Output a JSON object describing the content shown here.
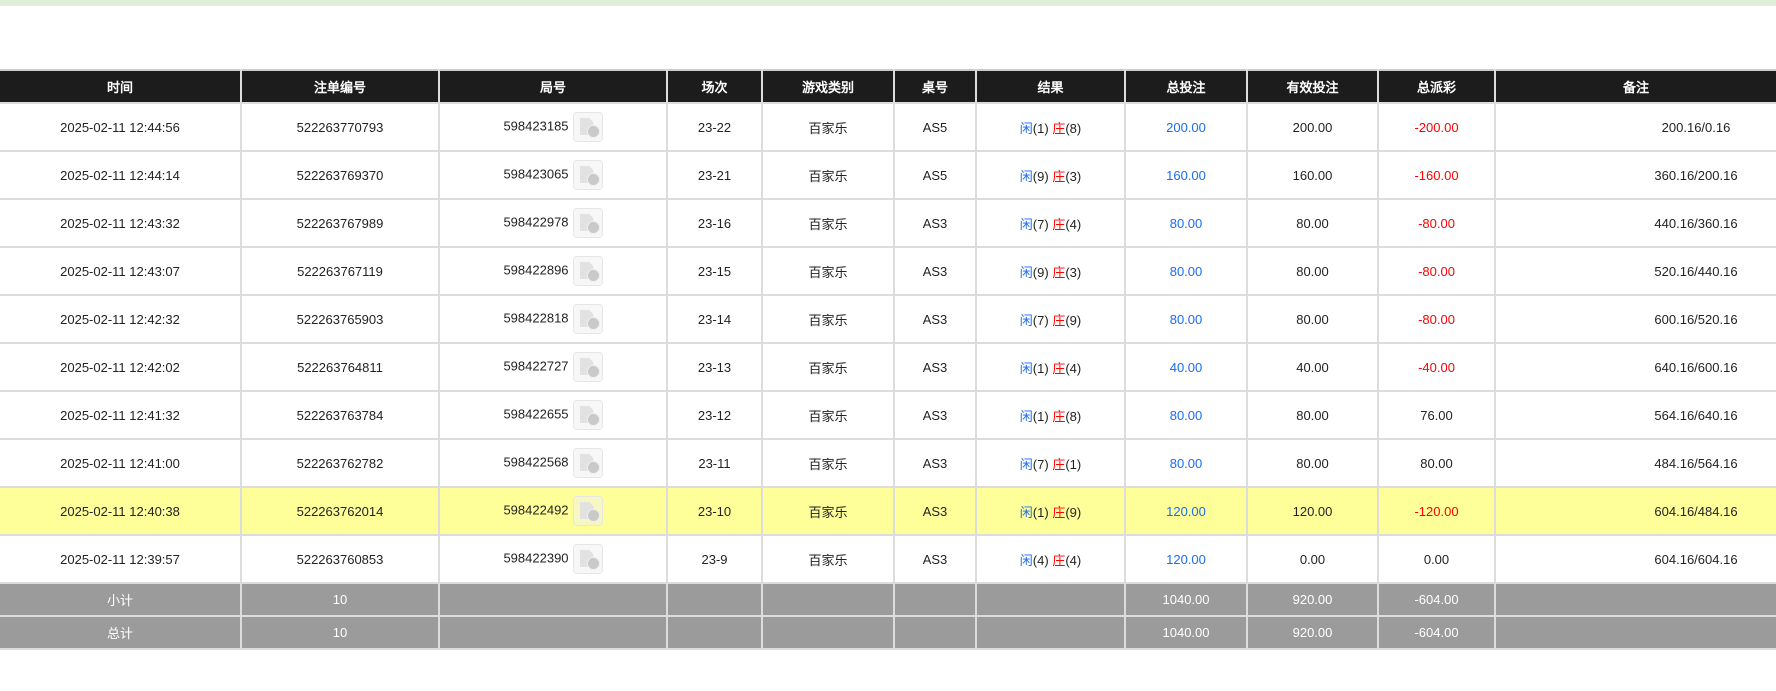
{
  "headers": [
    "时间",
    "注单编号",
    "局号",
    "场次",
    "游戏类别",
    "桌号",
    "结果",
    "总投注",
    "有效投注",
    "总派彩",
    "备注"
  ],
  "rows": [
    {
      "time": "2025-02-11 12:44:56",
      "bet_id": "522263770793",
      "round": "598423185",
      "session": "23-22",
      "game": "百家乐",
      "table": "AS5",
      "player_label": "闲",
      "player": "(1)",
      "banker_label": "庄",
      "banker": "(8)",
      "total_bet": "200.00",
      "valid_bet": "200.00",
      "payout": "-200.00",
      "payout_negative": true,
      "remark": "200.16/0.16"
    },
    {
      "time": "2025-02-11 12:44:14",
      "bet_id": "522263769370",
      "round": "598423065",
      "session": "23-21",
      "game": "百家乐",
      "table": "AS5",
      "player_label": "闲",
      "player": "(9)",
      "banker_label": "庄",
      "banker": "(3)",
      "total_bet": "160.00",
      "valid_bet": "160.00",
      "payout": "-160.00",
      "payout_negative": true,
      "remark": "360.16/200.16"
    },
    {
      "time": "2025-02-11 12:43:32",
      "bet_id": "522263767989",
      "round": "598422978",
      "session": "23-16",
      "game": "百家乐",
      "table": "AS3",
      "player_label": "闲",
      "player": "(7)",
      "banker_label": "庄",
      "banker": "(4)",
      "total_bet": "80.00",
      "valid_bet": "80.00",
      "payout": "-80.00",
      "payout_negative": true,
      "remark": "440.16/360.16"
    },
    {
      "time": "2025-02-11 12:43:07",
      "bet_id": "522263767119",
      "round": "598422896",
      "session": "23-15",
      "game": "百家乐",
      "table": "AS3",
      "player_label": "闲",
      "player": "(9)",
      "banker_label": "庄",
      "banker": "(3)",
      "total_bet": "80.00",
      "valid_bet": "80.00",
      "payout": "-80.00",
      "payout_negative": true,
      "remark": "520.16/440.16"
    },
    {
      "time": "2025-02-11 12:42:32",
      "bet_id": "522263765903",
      "round": "598422818",
      "session": "23-14",
      "game": "百家乐",
      "table": "AS3",
      "player_label": "闲",
      "player": "(7)",
      "banker_label": "庄",
      "banker": "(9)",
      "total_bet": "80.00",
      "valid_bet": "80.00",
      "payout": "-80.00",
      "payout_negative": true,
      "remark": "600.16/520.16"
    },
    {
      "time": "2025-02-11 12:42:02",
      "bet_id": "522263764811",
      "round": "598422727",
      "session": "23-13",
      "game": "百家乐",
      "table": "AS3",
      "player_label": "闲",
      "player": "(1)",
      "banker_label": "庄",
      "banker": "(4)",
      "total_bet": "40.00",
      "valid_bet": "40.00",
      "payout": "-40.00",
      "payout_negative": true,
      "remark": "640.16/600.16"
    },
    {
      "time": "2025-02-11 12:41:32",
      "bet_id": "522263763784",
      "round": "598422655",
      "session": "23-12",
      "game": "百家乐",
      "table": "AS3",
      "player_label": "闲",
      "player": "(1)",
      "banker_label": "庄",
      "banker": "(8)",
      "total_bet": "80.00",
      "valid_bet": "80.00",
      "payout": "76.00",
      "payout_negative": false,
      "remark": "564.16/640.16"
    },
    {
      "time": "2025-02-11 12:41:00",
      "bet_id": "522263762782",
      "round": "598422568",
      "session": "23-11",
      "game": "百家乐",
      "table": "AS3",
      "player_label": "闲",
      "player": "(7)",
      "banker_label": "庄",
      "banker": "(1)",
      "total_bet": "80.00",
      "valid_bet": "80.00",
      "payout": "80.00",
      "payout_negative": false,
      "remark": "484.16/564.16"
    },
    {
      "time": "2025-02-11 12:40:38",
      "bet_id": "522263762014",
      "round": "598422492",
      "session": "23-10",
      "game": "百家乐",
      "table": "AS3",
      "player_label": "闲",
      "player": "(1)",
      "banker_label": "庄",
      "banker": "(9)",
      "total_bet": "120.00",
      "valid_bet": "120.00",
      "payout": "-120.00",
      "payout_negative": true,
      "remark": "604.16/484.16",
      "highlighted": true
    },
    {
      "time": "2025-02-11 12:39:57",
      "bet_id": "522263760853",
      "round": "598422390",
      "session": "23-9",
      "game": "百家乐",
      "table": "AS3",
      "player_label": "闲",
      "player": "(4)",
      "banker_label": "庄",
      "banker": "(4)",
      "total_bet": "120.00",
      "valid_bet": "0.00",
      "payout": "0.00",
      "payout_negative": false,
      "remark": "604.16/604.16"
    }
  ],
  "subtotal": {
    "label": "小计",
    "count": "10",
    "total_bet": "1040.00",
    "valid_bet": "920.00",
    "payout": "-604.00"
  },
  "total": {
    "label": "总计",
    "count": "10",
    "total_bet": "1040.00",
    "valid_bet": "920.00",
    "payout": "-604.00"
  },
  "colors": {
    "header_bg": "#1c1c1c",
    "highlight": "#ffff99",
    "summary_bg": "#9b9b9b",
    "player": "#1a6cf0",
    "banker": "#ff0000",
    "negative": "#ff0000",
    "topbar": "#dff0d8"
  },
  "icons": {
    "round_detail": "video-file-icon"
  }
}
